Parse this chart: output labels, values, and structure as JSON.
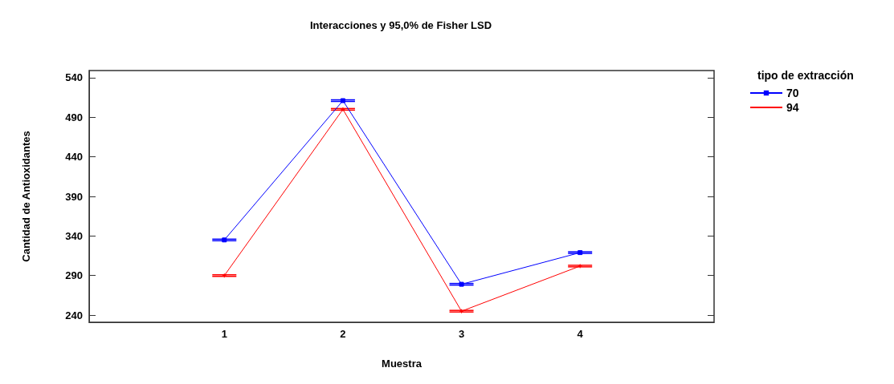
{
  "chart_data": {
    "type": "line",
    "title": "Interacciones y 95,0% de Fisher LSD",
    "xlabel": "Muestra",
    "ylabel": "Cantidad de Antioxidantes",
    "legend_title": "tipo de extracción",
    "categories": [
      "1",
      "2",
      "3",
      "4"
    ],
    "series": [
      {
        "name": "70",
        "color": "#0000ff",
        "marker": "square",
        "values": [
          335,
          511,
          279,
          319
        ],
        "errors": [
          1,
          1,
          1,
          1
        ]
      },
      {
        "name": "94",
        "color": "#ff0000",
        "marker": "cross",
        "values": [
          290,
          500,
          245,
          302
        ],
        "errors": [
          1,
          1,
          1,
          1
        ]
      }
    ],
    "ylim": [
      231,
      549
    ],
    "yticks": [
      240,
      290,
      340,
      390,
      440,
      490,
      540
    ],
    "grid": false,
    "legend": "top right"
  }
}
